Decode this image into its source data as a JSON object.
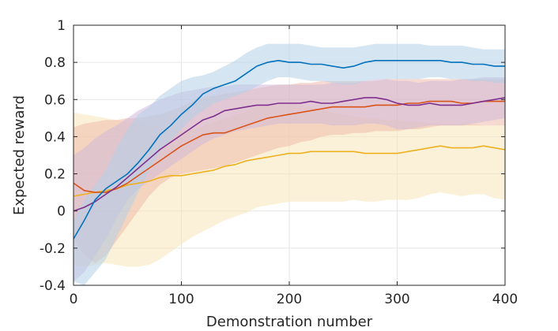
{
  "chart_data": {
    "type": "line",
    "xlabel": "Demonstration number",
    "ylabel": "Expected reward",
    "xlim": [
      0,
      400
    ],
    "ylim": [
      -0.4,
      1
    ],
    "xticks": [
      0,
      100,
      200,
      300,
      400
    ],
    "xtick_labels": [
      "0",
      "100",
      "200",
      "300",
      "400"
    ],
    "yticks": [
      -0.4,
      -0.2,
      0,
      0.2,
      0.4,
      0.6,
      0.8,
      1
    ],
    "ytick_labels": [
      "-0.4",
      "-0.2",
      "0",
      "0.2",
      "0.4",
      "0.6",
      "0.8",
      "1"
    ],
    "grid": true,
    "legend": "none",
    "x": [
      0,
      10,
      20,
      30,
      40,
      50,
      60,
      70,
      80,
      90,
      100,
      110,
      120,
      130,
      140,
      150,
      160,
      170,
      180,
      190,
      200,
      210,
      220,
      230,
      240,
      250,
      260,
      270,
      280,
      290,
      300,
      310,
      320,
      330,
      340,
      350,
      360,
      370,
      380,
      390,
      400
    ],
    "series": [
      {
        "color": "#0072BD",
        "band_color": "#B3CFE8",
        "values": [
          -0.15,
          -0.05,
          0.06,
          0.12,
          0.16,
          0.2,
          0.26,
          0.33,
          0.41,
          0.46,
          0.52,
          0.57,
          0.63,
          0.66,
          0.68,
          0.7,
          0.74,
          0.78,
          0.8,
          0.81,
          0.8,
          0.8,
          0.79,
          0.79,
          0.78,
          0.77,
          0.78,
          0.8,
          0.81,
          0.81,
          0.81,
          0.81,
          0.81,
          0.81,
          0.81,
          0.8,
          0.8,
          0.79,
          0.79,
          0.78,
          0.78
        ],
        "upper": [
          -0.05,
          0.06,
          0.14,
          0.22,
          0.34,
          0.44,
          0.52,
          0.56,
          0.62,
          0.66,
          0.7,
          0.72,
          0.73,
          0.75,
          0.78,
          0.81,
          0.85,
          0.88,
          0.9,
          0.9,
          0.9,
          0.9,
          0.89,
          0.88,
          0.88,
          0.88,
          0.88,
          0.89,
          0.9,
          0.9,
          0.9,
          0.9,
          0.9,
          0.89,
          0.89,
          0.89,
          0.89,
          0.88,
          0.87,
          0.87,
          0.87
        ],
        "lower": [
          -0.38,
          -0.4,
          -0.33,
          -0.26,
          -0.14,
          -0.02,
          0.1,
          0.22,
          0.32,
          0.38,
          0.44,
          0.5,
          0.54,
          0.58,
          0.6,
          0.62,
          0.64,
          0.67,
          0.7,
          0.72,
          0.72,
          0.71,
          0.7,
          0.7,
          0.69,
          0.68,
          0.68,
          0.7,
          0.71,
          0.71,
          0.71,
          0.71,
          0.71,
          0.72,
          0.72,
          0.71,
          0.71,
          0.7,
          0.7,
          0.69,
          0.69
        ]
      },
      {
        "color": "#D95319",
        "band_color": "#EEBCAB",
        "values": [
          0.15,
          0.11,
          0.1,
          0.1,
          0.12,
          0.15,
          0.19,
          0.23,
          0.27,
          0.31,
          0.35,
          0.38,
          0.41,
          0.42,
          0.42,
          0.44,
          0.46,
          0.48,
          0.5,
          0.51,
          0.52,
          0.53,
          0.54,
          0.55,
          0.56,
          0.56,
          0.56,
          0.56,
          0.57,
          0.57,
          0.57,
          0.58,
          0.58,
          0.59,
          0.59,
          0.59,
          0.58,
          0.58,
          0.59,
          0.59,
          0.59
        ],
        "upper": [
          0.45,
          0.47,
          0.48,
          0.49,
          0.49,
          0.5,
          0.5,
          0.51,
          0.52,
          0.54,
          0.56,
          0.59,
          0.61,
          0.62,
          0.63,
          0.64,
          0.65,
          0.66,
          0.67,
          0.68,
          0.68,
          0.69,
          0.69,
          0.7,
          0.7,
          0.7,
          0.7,
          0.7,
          0.7,
          0.71,
          0.71,
          0.71,
          0.71,
          0.71,
          0.71,
          0.71,
          0.71,
          0.71,
          0.71,
          0.71,
          0.71
        ],
        "lower": [
          -0.15,
          -0.24,
          -0.28,
          -0.24,
          -0.16,
          -0.08,
          0.0,
          0.08,
          0.14,
          0.18,
          0.2,
          0.21,
          0.22,
          0.23,
          0.24,
          0.26,
          0.28,
          0.3,
          0.32,
          0.34,
          0.35,
          0.37,
          0.38,
          0.4,
          0.41,
          0.41,
          0.42,
          0.42,
          0.43,
          0.43,
          0.43,
          0.44,
          0.44,
          0.45,
          0.46,
          0.46,
          0.46,
          0.46,
          0.46,
          0.46,
          0.46
        ]
      },
      {
        "color": "#EDB120",
        "band_color": "#F8E6B8",
        "values": [
          0.08,
          0.09,
          0.1,
          0.11,
          0.12,
          0.14,
          0.15,
          0.16,
          0.18,
          0.19,
          0.19,
          0.2,
          0.21,
          0.22,
          0.24,
          0.25,
          0.27,
          0.28,
          0.29,
          0.3,
          0.31,
          0.31,
          0.32,
          0.32,
          0.32,
          0.32,
          0.32,
          0.31,
          0.31,
          0.31,
          0.31,
          0.32,
          0.33,
          0.34,
          0.35,
          0.34,
          0.34,
          0.34,
          0.35,
          0.34,
          0.33
        ],
        "upper": [
          0.53,
          0.52,
          0.51,
          0.5,
          0.49,
          0.48,
          0.47,
          0.46,
          0.45,
          0.44,
          0.43,
          0.44,
          0.46,
          0.48,
          0.5,
          0.52,
          0.54,
          0.56,
          0.57,
          0.57,
          0.58,
          0.57,
          0.56,
          0.55,
          0.53,
          0.52,
          0.51,
          0.5,
          0.5,
          0.49,
          0.49,
          0.48,
          0.48,
          0.47,
          0.47,
          0.47,
          0.47,
          0.47,
          0.46,
          0.46,
          0.46
        ],
        "lower": [
          -0.29,
          -0.3,
          -0.29,
          -0.28,
          -0.29,
          -0.3,
          -0.3,
          -0.29,
          -0.26,
          -0.22,
          -0.18,
          -0.14,
          -0.11,
          -0.08,
          -0.05,
          -0.03,
          -0.01,
          0.02,
          0.03,
          0.04,
          0.05,
          0.05,
          0.05,
          0.05,
          0.05,
          0.05,
          0.06,
          0.05,
          0.05,
          0.06,
          0.06,
          0.06,
          0.07,
          0.09,
          0.1,
          0.09,
          0.08,
          0.09,
          0.09,
          0.07,
          0.06
        ]
      },
      {
        "color": "#7E2F8E",
        "band_color": "#D2B8D9",
        "values": [
          0.0,
          0.02,
          0.05,
          0.09,
          0.13,
          0.18,
          0.23,
          0.28,
          0.33,
          0.37,
          0.41,
          0.45,
          0.49,
          0.51,
          0.54,
          0.55,
          0.56,
          0.57,
          0.57,
          0.58,
          0.58,
          0.58,
          0.59,
          0.58,
          0.58,
          0.59,
          0.6,
          0.61,
          0.61,
          0.6,
          0.58,
          0.57,
          0.57,
          0.58,
          0.57,
          0.57,
          0.57,
          0.58,
          0.59,
          0.6,
          0.61
        ],
        "upper": [
          0.3,
          0.34,
          0.39,
          0.43,
          0.46,
          0.5,
          0.54,
          0.57,
          0.6,
          0.62,
          0.64,
          0.65,
          0.66,
          0.67,
          0.67,
          0.68,
          0.68,
          0.68,
          0.68,
          0.68,
          0.68,
          0.68,
          0.68,
          0.68,
          0.69,
          0.69,
          0.69,
          0.7,
          0.71,
          0.71,
          0.7,
          0.7,
          0.69,
          0.7,
          0.7,
          0.7,
          0.71,
          0.71,
          0.72,
          0.72,
          0.72
        ],
        "lower": [
          -0.38,
          -0.33,
          -0.24,
          -0.15,
          -0.04,
          0.06,
          0.12,
          0.16,
          0.2,
          0.24,
          0.28,
          0.32,
          0.36,
          0.39,
          0.41,
          0.43,
          0.44,
          0.45,
          0.46,
          0.47,
          0.47,
          0.47,
          0.47,
          0.47,
          0.46,
          0.46,
          0.46,
          0.47,
          0.47,
          0.46,
          0.44,
          0.44,
          0.45,
          0.46,
          0.46,
          0.46,
          0.46,
          0.47,
          0.48,
          0.49,
          0.5
        ]
      }
    ]
  }
}
